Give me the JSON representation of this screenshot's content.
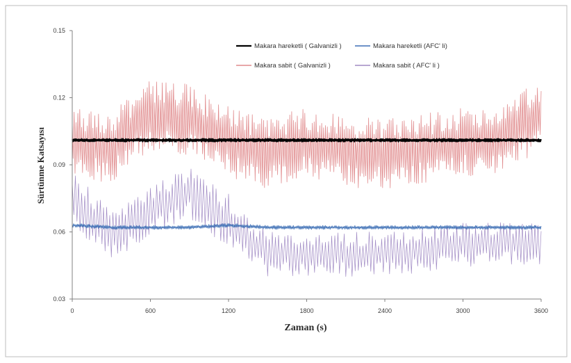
{
  "chart_data": {
    "type": "line",
    "title": "",
    "xlabel": "Zaman (s)",
    "ylabel": "Sürtünme Katsayısı",
    "xlim": [
      0,
      3600
    ],
    "ylim": [
      0.03,
      0.15
    ],
    "x_ticks": [
      0,
      600,
      1200,
      1800,
      2400,
      3000,
      3600
    ],
    "x_tick_labels": [
      "0",
      "600",
      "1200",
      "1800",
      "2400",
      "3000",
      "3600"
    ],
    "y_ticks": [
      0.03,
      0.06,
      0.09,
      0.12,
      0.15
    ],
    "y_tick_labels": [
      "0.03",
      "0.06",
      "0.09",
      "0.12",
      "0.15"
    ],
    "grid": false,
    "legend_position": "top-center",
    "series": [
      {
        "name": "Makara hareketli ( Galvanizli )",
        "color": "#000000",
        "x": [
          0,
          300,
          600,
          900,
          1200,
          1500,
          1800,
          2100,
          2400,
          2700,
          3000,
          3300,
          3600
        ],
        "values": [
          0.101,
          0.101,
          0.101,
          0.101,
          0.101,
          0.101,
          0.101,
          0.101,
          0.101,
          0.101,
          0.101,
          0.101,
          0.101
        ],
        "band": [
          0.1,
          0.1025
        ]
      },
      {
        "name": "Makara hareketli (AFC' li)",
        "color": "#3d6fb5",
        "x": [
          0,
          300,
          600,
          900,
          1200,
          1500,
          1800,
          2100,
          2400,
          2700,
          3000,
          3300,
          3600
        ],
        "values": [
          0.063,
          0.062,
          0.062,
          0.062,
          0.063,
          0.062,
          0.062,
          0.062,
          0.062,
          0.062,
          0.062,
          0.062,
          0.062
        ],
        "band": [
          0.061,
          0.064
        ]
      },
      {
        "name": "Makara sabit ( Galvanizli )",
        "color": "#e08a8c",
        "x": [
          0,
          300,
          600,
          900,
          1200,
          1500,
          1800,
          2100,
          2400,
          2700,
          3000,
          3300,
          3600
        ],
        "values": [
          0.1,
          0.098,
          0.112,
          0.11,
          0.1,
          0.095,
          0.1,
          0.096,
          0.095,
          0.097,
          0.1,
          0.102,
          0.112
        ],
        "band": [
          0.073,
          0.142
        ]
      },
      {
        "name": "Makara sabit ( AFC' li )",
        "color": "#a08ac4",
        "x": [
          0,
          300,
          600,
          900,
          1200,
          1500,
          1800,
          2100,
          2400,
          2700,
          3000,
          3300,
          3600
        ],
        "values": [
          0.075,
          0.058,
          0.07,
          0.078,
          0.065,
          0.05,
          0.05,
          0.05,
          0.05,
          0.052,
          0.054,
          0.055,
          0.055
        ],
        "band": [
          0.04,
          0.098
        ]
      }
    ]
  }
}
